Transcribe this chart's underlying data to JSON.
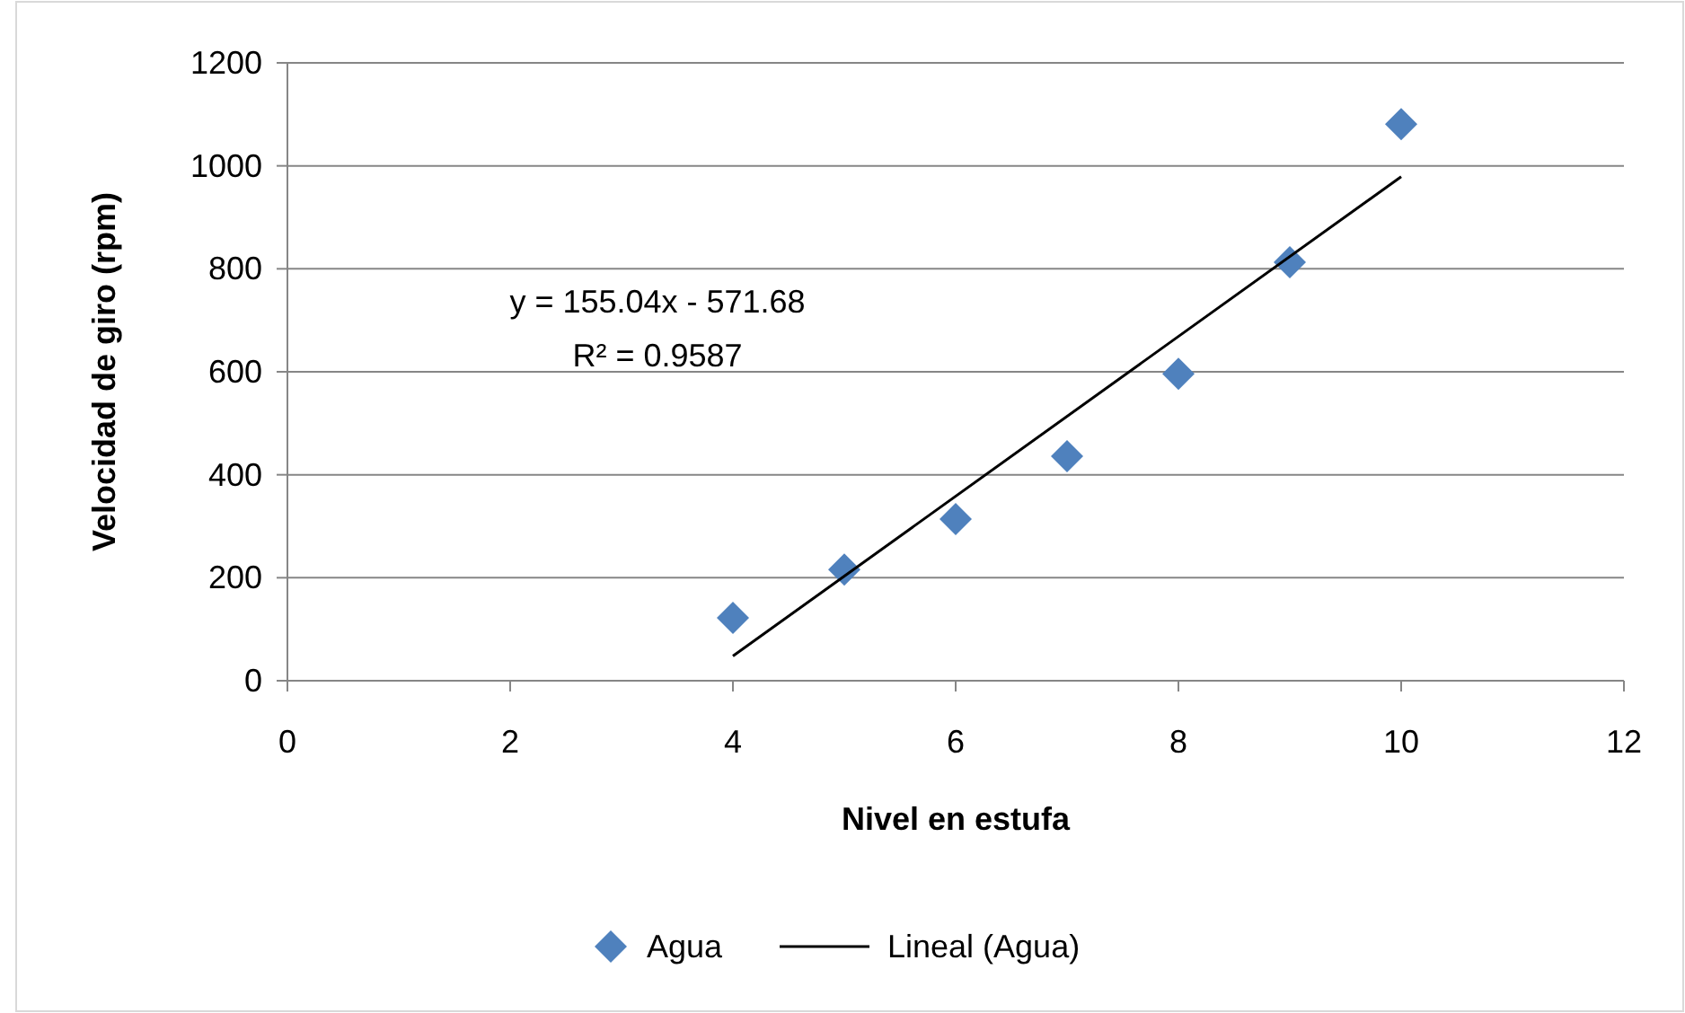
{
  "chart_data": {
    "type": "scatter",
    "xlabel": "Nivel en estufa",
    "ylabel": "Velocidad de giro (rpm)",
    "x": [
      4,
      5,
      6,
      7,
      8,
      9,
      10
    ],
    "series": [
      {
        "name": "Agua",
        "color": "#4f81bd",
        "marker": "diamond",
        "values": [
          122,
          216,
          314,
          436,
          596,
          813,
          1081
        ]
      },
      {
        "name": "Lineal (Agua)",
        "type": "line",
        "color": "#000000",
        "x": [
          4,
          10
        ],
        "values": [
          48,
          979
        ]
      }
    ],
    "xlim": [
      0,
      12
    ],
    "xticks": [
      0,
      2,
      4,
      6,
      8,
      10,
      12
    ],
    "ylim": [
      0,
      1200
    ],
    "yticks": [
      0,
      200,
      400,
      600,
      800,
      1000,
      1200
    ],
    "grid": "y",
    "legend": "bottom",
    "line_style": "solid",
    "annotations": [
      "y = 155.04x - 571.68",
      "R² = 0.9587"
    ]
  }
}
